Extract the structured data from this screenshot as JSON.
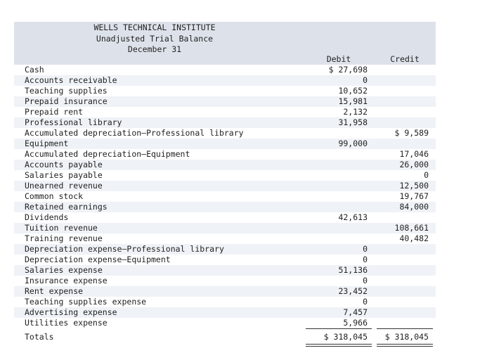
{
  "header": {
    "company": "WELLS TECHNICAL INSTITUTE",
    "report": "Unadjusted Trial Balance",
    "date": "December 31"
  },
  "columns": {
    "debit": "Debit",
    "credit": "Credit"
  },
  "rows": [
    {
      "account": "Cash",
      "debit": "$ 27,698",
      "credit": ""
    },
    {
      "account": "Accounts receivable",
      "debit": "0",
      "credit": ""
    },
    {
      "account": "Teaching supplies",
      "debit": "10,652",
      "credit": ""
    },
    {
      "account": "Prepaid insurance",
      "debit": "15,981",
      "credit": ""
    },
    {
      "account": "Prepaid rent",
      "debit": "2,132",
      "credit": ""
    },
    {
      "account": "Professional library",
      "debit": "31,958",
      "credit": ""
    },
    {
      "account": "Accumulated depreciation—Professional library",
      "debit": "",
      "credit": "$ 9,589"
    },
    {
      "account": "Equipment",
      "debit": "99,000",
      "credit": ""
    },
    {
      "account": "Accumulated depreciation—Equipment",
      "debit": "",
      "credit": "17,046"
    },
    {
      "account": "Accounts payable",
      "debit": "",
      "credit": "26,000"
    },
    {
      "account": "Salaries payable",
      "debit": "",
      "credit": "0"
    },
    {
      "account": "Unearned revenue",
      "debit": "",
      "credit": "12,500"
    },
    {
      "account": "Common stock",
      "debit": "",
      "credit": "19,767"
    },
    {
      "account": "Retained earnings",
      "debit": "",
      "credit": "84,000"
    },
    {
      "account": "Dividends",
      "debit": "42,613",
      "credit": ""
    },
    {
      "account": "Tuition revenue",
      "debit": "",
      "credit": "108,661"
    },
    {
      "account": "Training revenue",
      "debit": "",
      "credit": "40,482"
    },
    {
      "account": "Depreciation expense—Professional library",
      "debit": "0",
      "credit": ""
    },
    {
      "account": "Depreciation expense—Equipment",
      "debit": "0",
      "credit": ""
    },
    {
      "account": "Salaries expense",
      "debit": "51,136",
      "credit": ""
    },
    {
      "account": "Insurance expense",
      "debit": "0",
      "credit": ""
    },
    {
      "account": "Rent expense",
      "debit": "23,452",
      "credit": ""
    },
    {
      "account": "Teaching supplies expense",
      "debit": "0",
      "credit": ""
    },
    {
      "account": "Advertising expense",
      "debit": "7,457",
      "credit": ""
    },
    {
      "account": "Utilities expense",
      "debit": "5,966",
      "credit": ""
    }
  ],
  "totals": {
    "label": "Totals",
    "debit": "$ 318,045",
    "credit": "$ 318,045"
  }
}
